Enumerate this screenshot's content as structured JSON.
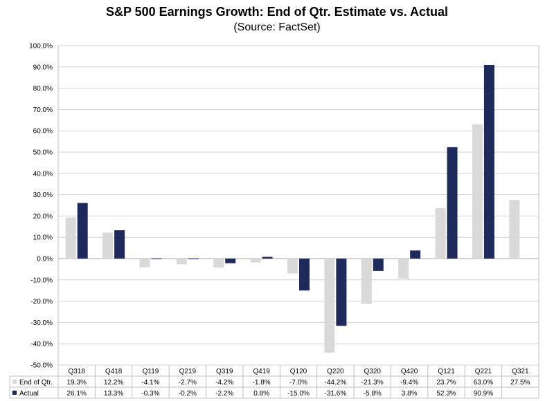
{
  "chart_data": {
    "type": "bar",
    "title": "S&P 500 Earnings Growth: End of Qtr. Estimate vs. Actual",
    "subtitle": "(Source: FactSet)",
    "categories": [
      "Q318",
      "Q418",
      "Q119",
      "Q219",
      "Q319",
      "Q419",
      "Q120",
      "Q220",
      "Q320",
      "Q420",
      "Q121",
      "Q221",
      "Q321"
    ],
    "series": [
      {
        "name": "End of Qtr.",
        "color": "#d9d9d9",
        "values": [
          19.3,
          12.2,
          -4.1,
          -2.7,
          -4.2,
          -1.8,
          -7.0,
          -44.2,
          -21.3,
          -9.4,
          23.7,
          63.0,
          27.5
        ],
        "labels": [
          "19.3%",
          "12.2%",
          "-4.1%",
          "-2.7%",
          "-4.2%",
          "-1.8%",
          "-7.0%",
          "-44.2%",
          "-21.3%",
          "-9.4%",
          "23.7%",
          "63.0%",
          "27.5%"
        ]
      },
      {
        "name": "Actual",
        "color": "#1f2a5c",
        "values": [
          26.1,
          13.3,
          -0.3,
          -0.2,
          -2.2,
          0.8,
          -15.0,
          -31.6,
          -5.8,
          3.8,
          52.3,
          90.9,
          null
        ],
        "labels": [
          "26.1%",
          "13.3%",
          "-0.3%",
          "-0.2%",
          "-2.2%",
          "0.8%",
          "-15.0%",
          "-31.6%",
          "-5.8%",
          "3.8%",
          "52.3%",
          "90.9%",
          ""
        ]
      }
    ],
    "yticks": [
      "100.0%",
      "90.0%",
      "80.0%",
      "70.0%",
      "60.0%",
      "50.0%",
      "40.0%",
      "30.0%",
      "20.0%",
      "10.0%",
      "0.0%",
      "-10.0%",
      "-20.0%",
      "-30.0%",
      "-40.0%",
      "-50.0%"
    ],
    "ylim": [
      -50,
      100
    ],
    "grid": true,
    "legend": "data table"
  }
}
